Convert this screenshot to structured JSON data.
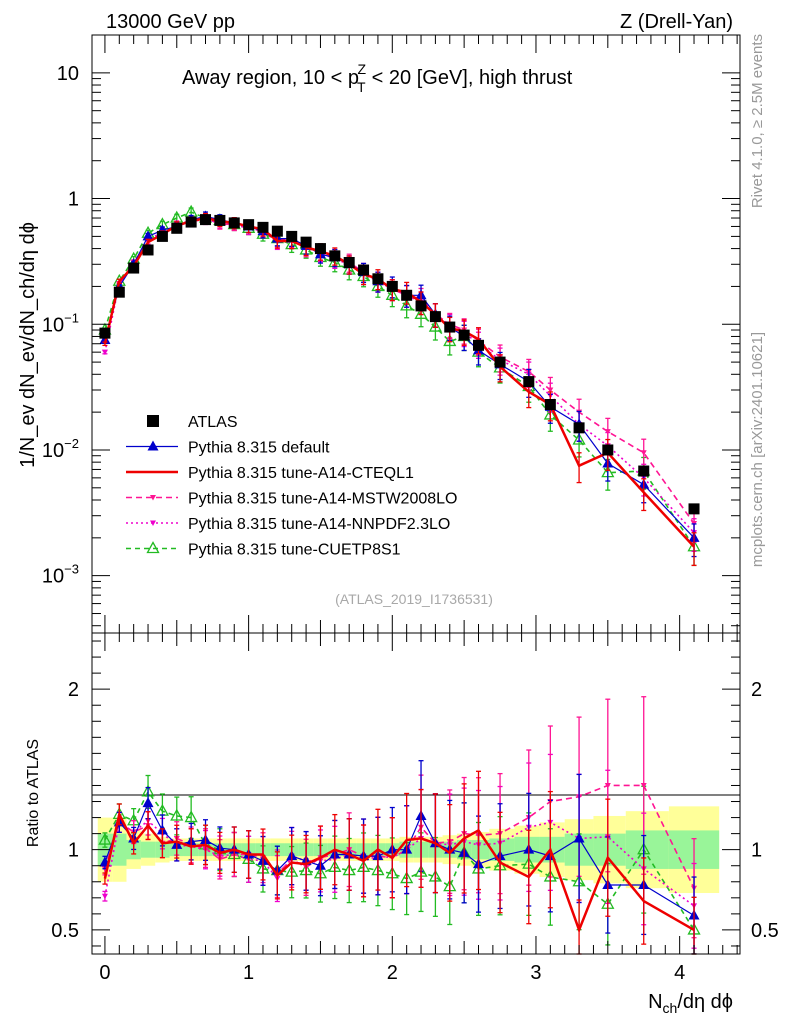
{
  "header": {
    "left": "13000 GeV pp",
    "right": "Z (Drell-Yan)"
  },
  "side_labels": {
    "rivet": "Rivet 4.1.0, ≥ 2.5M events",
    "mcplots": "mcplots.cern.ch [arXiv:2401.10621]"
  },
  "source_label": "(ATLAS_2019_I1736531)",
  "colors": {
    "atlas": "#000000",
    "default": "#0000cc",
    "cteql1": "#ee0000",
    "mstw": "#ff1493",
    "nnpdf": "#ee00cc",
    "cuetp8s1": "#22bb22",
    "band_inner": "#99f599",
    "band_outer": "#ffff99"
  },
  "chart_data": [
    {
      "type": "line",
      "name": "main",
      "title_parts": {
        "prefix": "Away region, 10 < p",
        "sup": "Z",
        "sub": "T",
        "suffix": " < 20 [GeV], high thrust"
      },
      "ylabel": "1/N_ev dN_ev/dN_ch/dη dϕ",
      "yscale": "log",
      "ylim": [
        0.00035,
        20
      ],
      "xlim": [
        -0.09,
        4.42
      ],
      "yticks": [
        {
          "value": 10,
          "base": "10",
          "exp": ""
        },
        {
          "value": 1,
          "base": "1",
          "exp": ""
        },
        {
          "value": 0.1,
          "base": "10",
          "exp": "−1"
        },
        {
          "value": 0.01,
          "base": "10",
          "exp": "−2"
        },
        {
          "value": 0.001,
          "base": "10",
          "exp": "−3"
        }
      ],
      "x": [
        0.0,
        0.1,
        0.2,
        0.3,
        0.4,
        0.5,
        0.6,
        0.7,
        0.8,
        0.9,
        1.0,
        1.1,
        1.2,
        1.3,
        1.4,
        1.5,
        1.6,
        1.7,
        1.8,
        1.9,
        2.0,
        2.1,
        2.2,
        2.3,
        2.4,
        2.5,
        2.6,
        2.75,
        2.95,
        3.1,
        3.3,
        3.5,
        3.75,
        4.1
      ],
      "series": [
        {
          "name": "ATLAS",
          "key": "atlas",
          "values": [
            0.085,
            0.18,
            0.28,
            0.39,
            0.5,
            0.58,
            0.65,
            0.68,
            0.67,
            0.64,
            0.62,
            0.59,
            0.55,
            0.5,
            0.45,
            0.4,
            0.35,
            0.31,
            0.27,
            0.23,
            0.2,
            0.17,
            0.14,
            0.115,
            0.095,
            0.082,
            0.068,
            0.05,
            0.035,
            0.023,
            0.015,
            0.01,
            0.0068,
            0.0034
          ]
        },
        {
          "name": "Pythia 8.315 default",
          "key": "default",
          "values": [
            0.075,
            0.2,
            0.3,
            0.5,
            0.56,
            0.6,
            0.68,
            0.72,
            0.68,
            0.64,
            0.6,
            0.55,
            0.48,
            0.48,
            0.42,
            0.36,
            0.34,
            0.3,
            0.26,
            0.22,
            0.2,
            0.17,
            0.17,
            0.12,
            0.095,
            0.08,
            0.062,
            0.048,
            0.035,
            0.022,
            0.016,
            0.0078,
            0.0053,
            0.002
          ]
        },
        {
          "name": "Pythia 8.315 tune-A14-CTEQL1",
          "key": "cteql1",
          "values": [
            0.07,
            0.22,
            0.29,
            0.45,
            0.52,
            0.61,
            0.66,
            0.7,
            0.66,
            0.64,
            0.6,
            0.57,
            0.46,
            0.46,
            0.41,
            0.38,
            0.35,
            0.3,
            0.25,
            0.23,
            0.19,
            0.18,
            0.15,
            0.12,
            0.093,
            0.088,
            0.076,
            0.046,
            0.029,
            0.023,
            0.0075,
            0.0095,
            0.0046,
            0.0017
          ]
        },
        {
          "name": "Pythia 8.315 tune-A14-MSTW2008LO",
          "key": "mstw",
          "values": [
            0.075,
            0.21,
            0.31,
            0.45,
            0.52,
            0.62,
            0.67,
            0.69,
            0.63,
            0.62,
            0.6,
            0.56,
            0.47,
            0.47,
            0.4,
            0.38,
            0.34,
            0.31,
            0.26,
            0.22,
            0.19,
            0.17,
            0.16,
            0.12,
            0.1,
            0.09,
            0.074,
            0.055,
            0.042,
            0.03,
            0.02,
            0.014,
            0.0095,
            0.0026
          ]
        },
        {
          "name": "Pythia 8.315 tune-A14-NNPDF2.3LO",
          "key": "nnpdf",
          "values": [
            0.06,
            0.21,
            0.31,
            0.46,
            0.55,
            0.6,
            0.66,
            0.68,
            0.64,
            0.62,
            0.58,
            0.55,
            0.45,
            0.48,
            0.42,
            0.37,
            0.33,
            0.3,
            0.25,
            0.22,
            0.19,
            0.17,
            0.15,
            0.12,
            0.098,
            0.086,
            0.07,
            0.052,
            0.04,
            0.027,
            0.016,
            0.0108,
            0.006,
            0.0022
          ]
        },
        {
          "name": "Pythia 8.315 tune-CUETP8S1",
          "key": "cuetp8s1",
          "values": [
            0.09,
            0.22,
            0.33,
            0.53,
            0.62,
            0.7,
            0.78,
            0.7,
            0.67,
            0.62,
            0.58,
            0.52,
            0.48,
            0.43,
            0.39,
            0.34,
            0.31,
            0.27,
            0.24,
            0.2,
            0.17,
            0.14,
            0.12,
            0.095,
            0.073,
            0.08,
            0.06,
            0.045,
            0.032,
            0.019,
            0.012,
            0.0066,
            0.0068,
            0.0017
          ]
        }
      ]
    },
    {
      "type": "line",
      "name": "ratio",
      "ylabel": "Ratio to ATLAS",
      "yscale": "linear",
      "ylim": [
        0.35,
        2.35
      ],
      "yticks": [
        0.5,
        1,
        2
      ],
      "xticks": [
        0,
        1,
        2,
        3,
        4
      ],
      "xlabel_parts": {
        "base": "N",
        "sub": "ch",
        "suffix": "/dη dϕ"
      },
      "bands": {
        "inner": [
          0.1,
          0.1,
          0.06,
          0.05,
          0.05,
          0.04,
          0.04,
          0.04,
          0.04,
          0.04,
          0.04,
          0.04,
          0.04,
          0.04,
          0.04,
          0.04,
          0.04,
          0.04,
          0.04,
          0.04,
          0.04,
          0.05,
          0.05,
          0.05,
          0.05,
          0.06,
          0.06,
          0.07,
          0.08,
          0.08,
          0.1,
          0.1,
          0.12,
          0.12
        ],
        "outer": [
          0.2,
          0.2,
          0.12,
          0.1,
          0.08,
          0.07,
          0.07,
          0.07,
          0.07,
          0.07,
          0.07,
          0.07,
          0.07,
          0.07,
          0.07,
          0.07,
          0.07,
          0.07,
          0.07,
          0.07,
          0.07,
          0.08,
          0.08,
          0.08,
          0.09,
          0.1,
          0.11,
          0.13,
          0.15,
          0.17,
          0.19,
          0.21,
          0.24,
          0.27
        ]
      },
      "series": [
        {
          "name": "Pythia 8.315 default",
          "key": "default",
          "values": [
            0.92,
            1.17,
            1.07,
            1.29,
            1.12,
            1.03,
            1.05,
            1.06,
            1.01,
            1.0,
            0.97,
            0.93,
            0.87,
            0.96,
            0.93,
            0.9,
            0.97,
            0.97,
            0.96,
            0.96,
            1.0,
            1.0,
            1.21,
            1.04,
            1.0,
            0.98,
            0.91,
            0.96,
            1.0,
            0.96,
            1.07,
            0.78,
            0.78,
            0.59
          ]
        },
        {
          "name": "Pythia 8.315 tune-A14-CTEQL1",
          "key": "cteql1",
          "values": [
            0.82,
            1.22,
            1.04,
            1.15,
            1.04,
            1.05,
            1.02,
            1.03,
            0.98,
            1.0,
            0.97,
            0.97,
            0.84,
            0.92,
            0.91,
            0.95,
            1.0,
            0.97,
            0.93,
            1.0,
            0.95,
            1.06,
            1.07,
            1.04,
            0.98,
            1.07,
            1.12,
            0.92,
            0.83,
            1.0,
            0.5,
            0.95,
            0.68,
            0.5
          ]
        },
        {
          "name": "Pythia 8.315 tune-A14-MSTW2008LO",
          "key": "mstw",
          "values": [
            0.88,
            1.17,
            1.11,
            1.15,
            1.04,
            1.07,
            1.03,
            1.01,
            0.94,
            0.97,
            0.97,
            0.95,
            0.85,
            0.94,
            0.89,
            0.95,
            0.97,
            1.0,
            0.96,
            0.96,
            0.95,
            1.0,
            1.14,
            1.04,
            1.05,
            1.1,
            1.09,
            1.1,
            1.2,
            1.3,
            1.33,
            1.4,
            1.4,
            0.76
          ]
        },
        {
          "name": "Pythia 8.315 tune-A14-NNPDF2.3LO",
          "key": "nnpdf",
          "values": [
            0.71,
            1.17,
            1.11,
            1.18,
            1.1,
            1.03,
            1.02,
            1.0,
            0.96,
            0.97,
            0.94,
            0.93,
            0.82,
            0.96,
            0.93,
            0.93,
            0.94,
            0.97,
            0.93,
            0.96,
            0.95,
            1.0,
            1.07,
            1.04,
            1.03,
            1.05,
            1.03,
            1.04,
            1.14,
            1.17,
            1.07,
            1.08,
            0.88,
            0.65
          ]
        },
        {
          "name": "Pythia 8.315 tune-CUETP8S1",
          "key": "cuetp8s1",
          "values": [
            1.06,
            1.22,
            1.18,
            1.36,
            1.24,
            1.21,
            1.2,
            1.03,
            1.0,
            0.97,
            0.94,
            0.88,
            0.87,
            0.86,
            0.87,
            0.85,
            0.89,
            0.87,
            0.89,
            0.87,
            0.85,
            0.82,
            0.86,
            0.83,
            0.77,
            0.98,
            0.88,
            0.9,
            0.91,
            0.83,
            0.8,
            0.66,
            1.0,
            0.5
          ]
        }
      ]
    }
  ]
}
